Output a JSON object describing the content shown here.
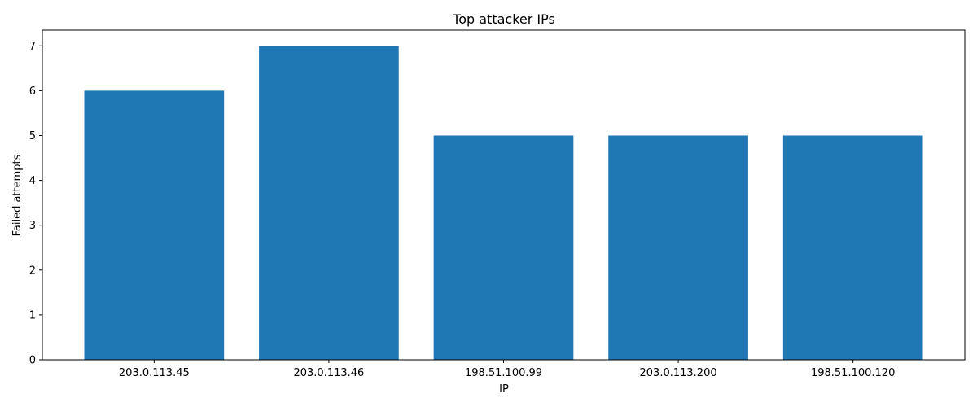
{
  "chart_data": {
    "type": "bar",
    "title": "Top attacker IPs",
    "xlabel": "IP",
    "ylabel": "Failed attempts",
    "categories": [
      "203.0.113.45",
      "203.0.113.46",
      "198.51.100.99",
      "203.0.113.200",
      "198.51.100.120"
    ],
    "values": [
      6,
      7,
      5,
      5,
      5
    ],
    "ylim": [
      0,
      7.35
    ],
    "yticks": [
      0,
      1,
      2,
      3,
      4,
      5,
      6,
      7
    ],
    "grid": false,
    "legend": "none",
    "bar_color": "#1f77b4"
  }
}
